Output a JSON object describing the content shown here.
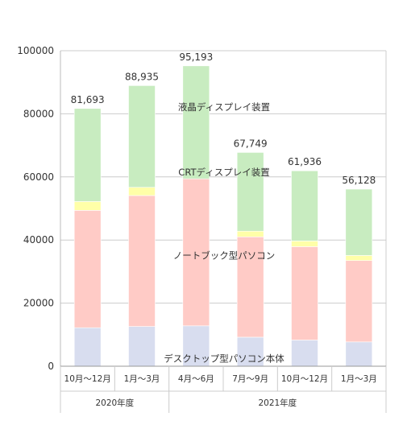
{
  "chart_data": {
    "type": "bar",
    "stacked": true,
    "categories": [
      "10月～12月",
      "1月～3月",
      "4月～6月",
      "7月～9月",
      "10月～12月",
      "1月～3月"
    ],
    "category_colors": [
      "#333333",
      "#333333",
      "#333333",
      "#333333",
      "#333333",
      "#e8392b"
    ],
    "groups": [
      {
        "label": "2020年度",
        "from": 0,
        "to": 1
      },
      {
        "label": "2021年度",
        "from": 2,
        "to": 5
      }
    ],
    "series": [
      {
        "name": "デスクトップ型パソコン本体",
        "color": "#d8ddef",
        "values": [
          12200,
          12600,
          12800,
          9200,
          8300,
          7700
        ]
      },
      {
        "name": "ノートブック型パソコン",
        "color": "#ffcbc6",
        "values": [
          37200,
          41500,
          46600,
          31800,
          29600,
          25800
        ]
      },
      {
        "name": "CRTディスプレイ装置",
        "color": "#ffffa8",
        "values": [
          2800,
          2600,
          0,
          1800,
          1800,
          1600
        ]
      },
      {
        "name": "液晶ディスプレイ装置",
        "color": "#c8ecc0",
        "values": [
          29493,
          32235,
          35793,
          24949,
          22236,
          21028
        ]
      }
    ],
    "totals": [
      "81,693",
      "88,935",
      "95,193",
      "67,749",
      "61,936",
      "56,128"
    ],
    "total_colors": [
      "#333333",
      "#333333",
      "#333333",
      "#333333",
      "#333333",
      "#e8392b"
    ],
    "yticks": [
      0,
      20000,
      40000,
      60000,
      80000,
      100000
    ],
    "ylim": [
      0,
      100000
    ],
    "grid": true
  }
}
